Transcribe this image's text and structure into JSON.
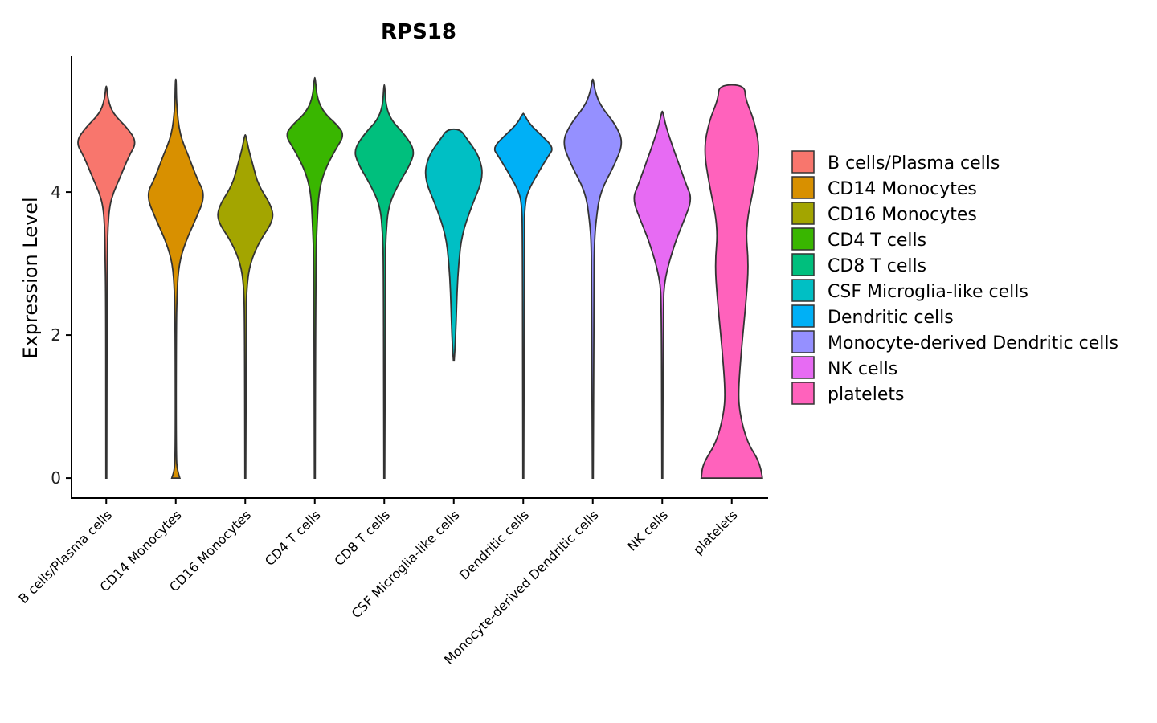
{
  "chart_data": {
    "type": "violin",
    "title": "RPS18",
    "xlabel": "",
    "ylabel": "Expression Level",
    "ylim": [
      -0.28,
      5.9
    ],
    "yticks": [
      0,
      2,
      4
    ],
    "categories": [
      "B cells/Plasma cells",
      "CD14 Monocytes",
      "CD16 Monocytes",
      "CD4 T cells",
      "CD8 T cells",
      "CSF Microglia-like cells",
      "Dendritic cells",
      "Monocyte-derived Dendritic cells",
      "NK cells",
      "platelets"
    ],
    "colors": [
      "#F8766D",
      "#D89000",
      "#A3A500",
      "#39B600",
      "#00BF7D",
      "#00BFC4",
      "#00B0F6",
      "#9590FF",
      "#E76BF3",
      "#FF62BC"
    ],
    "density_scale_halfwidth": 38,
    "violins": [
      {
        "profile": [
          [
            0,
            0.5
          ],
          [
            2.5,
            0.6
          ],
          [
            3.2,
            1.5
          ],
          [
            3.5,
            2
          ],
          [
            3.8,
            4
          ],
          [
            4.0,
            9
          ],
          [
            4.2,
            17
          ],
          [
            4.5,
            28
          ],
          [
            4.7,
            38
          ],
          [
            4.9,
            26
          ],
          [
            5.1,
            8
          ],
          [
            5.3,
            2
          ],
          [
            5.48,
            0.5
          ]
        ]
      },
      {
        "profile": [
          [
            0,
            5
          ],
          [
            0.1,
            2
          ],
          [
            0.3,
            0.5
          ],
          [
            2.0,
            0.7
          ],
          [
            2.6,
            1.5
          ],
          [
            3.0,
            4
          ],
          [
            3.3,
            12
          ],
          [
            3.6,
            24
          ],
          [
            3.95,
            37
          ],
          [
            4.2,
            26
          ],
          [
            4.5,
            16
          ],
          [
            4.8,
            5
          ],
          [
            5.2,
            1
          ],
          [
            5.58,
            0.5
          ]
        ]
      },
      {
        "profile": [
          [
            0,
            0.5
          ],
          [
            2.2,
            0.8
          ],
          [
            2.7,
            2
          ],
          [
            3.0,
            6
          ],
          [
            3.3,
            17
          ],
          [
            3.6,
            35
          ],
          [
            3.8,
            33
          ],
          [
            4.1,
            16
          ],
          [
            4.4,
            9
          ],
          [
            4.6,
            4
          ],
          [
            4.8,
            0.6
          ]
        ]
      },
      {
        "profile": [
          [
            0,
            0.5
          ],
          [
            3.0,
            1
          ],
          [
            3.6,
            3
          ],
          [
            4.0,
            5
          ],
          [
            4.3,
            12
          ],
          [
            4.6,
            26
          ],
          [
            4.8,
            37
          ],
          [
            4.95,
            27
          ],
          [
            5.1,
            12
          ],
          [
            5.3,
            3
          ],
          [
            5.6,
            0.5
          ]
        ]
      },
      {
        "profile": [
          [
            0,
            0.5
          ],
          [
            3.0,
            1
          ],
          [
            3.4,
            2
          ],
          [
            3.8,
            5
          ],
          [
            4.1,
            17
          ],
          [
            4.4,
            33
          ],
          [
            4.6,
            38
          ],
          [
            4.85,
            22
          ],
          [
            5.0,
            9
          ],
          [
            5.2,
            2
          ],
          [
            5.5,
            0.5
          ]
        ]
      },
      {
        "profile": [
          [
            1.65,
            0.5
          ],
          [
            1.8,
            1.5
          ],
          [
            2.2,
            3
          ],
          [
            2.6,
            4
          ],
          [
            3.0,
            6
          ],
          [
            3.4,
            10
          ],
          [
            3.8,
            22
          ],
          [
            4.2,
            37
          ],
          [
            4.5,
            32
          ],
          [
            4.75,
            16
          ],
          [
            4.88,
            8
          ]
        ]
      },
      {
        "profile": [
          [
            0,
            0.5
          ],
          [
            3.5,
            1
          ],
          [
            3.8,
            2
          ],
          [
            4.0,
            5
          ],
          [
            4.3,
            20
          ],
          [
            4.5,
            31
          ],
          [
            4.62,
            38
          ],
          [
            4.8,
            22
          ],
          [
            4.95,
            8
          ],
          [
            5.1,
            0.5
          ]
        ]
      },
      {
        "profile": [
          [
            0,
            0.5
          ],
          [
            2.8,
            1.5
          ],
          [
            3.3,
            2
          ],
          [
            3.6,
            4
          ],
          [
            4.0,
            9
          ],
          [
            4.4,
            28
          ],
          [
            4.7,
            38
          ],
          [
            4.95,
            28
          ],
          [
            5.2,
            10
          ],
          [
            5.4,
            3
          ],
          [
            5.58,
            0.5
          ]
        ]
      },
      {
        "profile": [
          [
            0,
            0.5
          ],
          [
            2.4,
            1
          ],
          [
            2.8,
            3
          ],
          [
            3.3,
            16
          ],
          [
            3.6,
            27
          ],
          [
            3.9,
            37
          ],
          [
            4.1,
            30
          ],
          [
            4.35,
            22
          ],
          [
            4.6,
            14
          ],
          [
            4.9,
            5
          ],
          [
            5.13,
            0.5
          ]
        ]
      },
      {
        "profile": [
          [
            0,
            38
          ],
          [
            0.2,
            36
          ],
          [
            0.5,
            19
          ],
          [
            0.9,
            10
          ],
          [
            1.2,
            8
          ],
          [
            1.8,
            12
          ],
          [
            2.5,
            18
          ],
          [
            3.0,
            21
          ],
          [
            3.5,
            17
          ],
          [
            4.1,
            28
          ],
          [
            4.6,
            35
          ],
          [
            5.0,
            28
          ],
          [
            5.3,
            17
          ],
          [
            5.5,
            16
          ]
        ]
      }
    ]
  }
}
